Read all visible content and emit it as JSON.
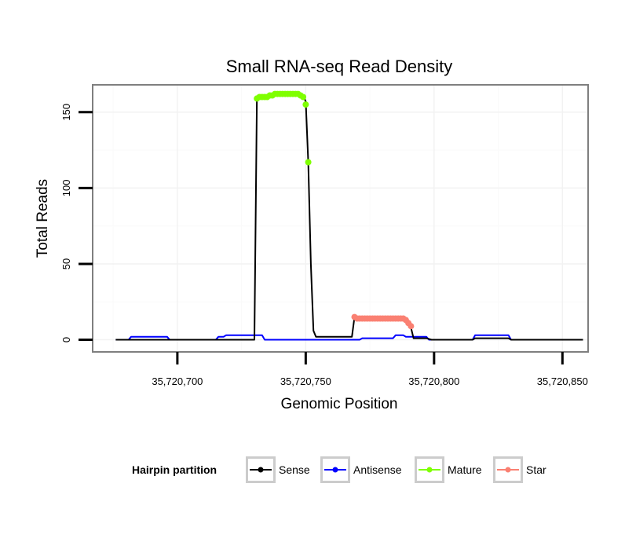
{
  "chart_data": {
    "type": "line",
    "title": "Small RNA-seq Read Density",
    "xlabel": "Genomic Position",
    "ylabel": "Total Reads",
    "xlim": [
      35720667,
      35720860
    ],
    "ylim": [
      -8,
      168
    ],
    "x_ticks": [
      {
        "value": 35720700,
        "label": "35,720,700"
      },
      {
        "value": 35720750,
        "label": "35,720,750"
      },
      {
        "value": 35720800,
        "label": "35,720,800"
      },
      {
        "value": 35720850,
        "label": "35,720,850"
      }
    ],
    "y_ticks": [
      {
        "value": 0,
        "label": "0"
      },
      {
        "value": 50,
        "label": "50"
      },
      {
        "value": 100,
        "label": "100"
      },
      {
        "value": 150,
        "label": "150"
      }
    ],
    "legend": {
      "title": "Hairpin partition",
      "placement": "bottom",
      "entries": [
        {
          "name": "Sense",
          "color": "#000000"
        },
        {
          "name": "Antisense",
          "color": "#0000ff"
        },
        {
          "name": "Mature",
          "color": "#7fff00"
        },
        {
          "name": "Star",
          "color": "#fa8072"
        }
      ]
    },
    "series": [
      {
        "name": "Sense",
        "color": "#000000",
        "style": "line",
        "points": [
          [
            35720676,
            0
          ],
          [
            35720730,
            0
          ],
          [
            35720731,
            160
          ],
          [
            35720737,
            161
          ],
          [
            35720740,
            162
          ],
          [
            35720746,
            162
          ],
          [
            35720749,
            161
          ],
          [
            35720750,
            157
          ],
          [
            35720751,
            117
          ],
          [
            35720752,
            50
          ],
          [
            35720753,
            6
          ],
          [
            35720754,
            2
          ],
          [
            35720768,
            2
          ],
          [
            35720769,
            15
          ],
          [
            35720789,
            14
          ],
          [
            35720790,
            11
          ],
          [
            35720791,
            8
          ],
          [
            35720792,
            1
          ],
          [
            35720797,
            1
          ],
          [
            35720799,
            0
          ],
          [
            35720815,
            0
          ],
          [
            35720816,
            1
          ],
          [
            35720829,
            1
          ],
          [
            35720830,
            0
          ],
          [
            35720858,
            0
          ]
        ]
      },
      {
        "name": "Antisense",
        "color": "#0000ff",
        "style": "line",
        "points": [
          [
            35720676,
            0
          ],
          [
            35720681,
            0
          ],
          [
            35720682,
            2
          ],
          [
            35720696,
            2
          ],
          [
            35720697,
            0
          ],
          [
            35720715,
            0
          ],
          [
            35720716,
            2
          ],
          [
            35720718,
            2
          ],
          [
            35720719,
            3
          ],
          [
            35720733,
            3
          ],
          [
            35720734,
            0
          ],
          [
            35720771,
            0
          ],
          [
            35720772,
            1
          ],
          [
            35720784,
            1
          ],
          [
            35720785,
            3
          ],
          [
            35720788,
            3
          ],
          [
            35720789,
            2
          ],
          [
            35720797,
            2
          ],
          [
            35720798,
            0
          ],
          [
            35720815,
            0
          ],
          [
            35720816,
            3
          ],
          [
            35720829,
            3
          ],
          [
            35720830,
            0
          ],
          [
            35720858,
            0
          ]
        ]
      },
      {
        "name": "Mature",
        "color": "#7fff00",
        "style": "points",
        "points": [
          [
            35720731,
            159
          ],
          [
            35720732,
            160
          ],
          [
            35720733,
            160
          ],
          [
            35720734,
            160
          ],
          [
            35720735,
            160
          ],
          [
            35720736,
            161
          ],
          [
            35720737,
            161
          ],
          [
            35720738,
            162
          ],
          [
            35720739,
            162
          ],
          [
            35720740,
            162
          ],
          [
            35720741,
            162
          ],
          [
            35720742,
            162
          ],
          [
            35720743,
            162
          ],
          [
            35720744,
            162
          ],
          [
            35720745,
            162
          ],
          [
            35720746,
            162
          ],
          [
            35720747,
            162
          ],
          [
            35720748,
            161
          ],
          [
            35720749,
            160
          ],
          [
            35720750,
            155
          ],
          [
            35720751,
            117
          ]
        ]
      },
      {
        "name": "Star",
        "color": "#fa8072",
        "style": "points",
        "points": [
          [
            35720769,
            15
          ],
          [
            35720770,
            14
          ],
          [
            35720771,
            14
          ],
          [
            35720772,
            14
          ],
          [
            35720773,
            14
          ],
          [
            35720774,
            14
          ],
          [
            35720775,
            14
          ],
          [
            35720776,
            14
          ],
          [
            35720777,
            14
          ],
          [
            35720778,
            14
          ],
          [
            35720779,
            14
          ],
          [
            35720780,
            14
          ],
          [
            35720781,
            14
          ],
          [
            35720782,
            14
          ],
          [
            35720783,
            14
          ],
          [
            35720784,
            14
          ],
          [
            35720785,
            14
          ],
          [
            35720786,
            14
          ],
          [
            35720787,
            14
          ],
          [
            35720788,
            14
          ],
          [
            35720789,
            13
          ],
          [
            35720790,
            11
          ],
          [
            35720791,
            9
          ]
        ]
      }
    ]
  }
}
